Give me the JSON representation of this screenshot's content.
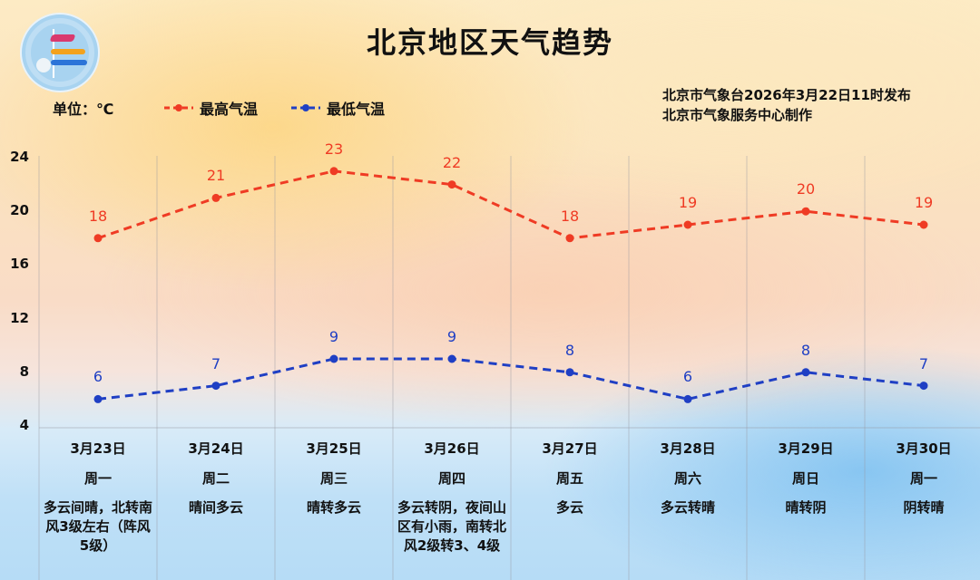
{
  "header": {
    "title": "北京地区天气趋势",
    "unit_label": "单位：℃",
    "legend": [
      {
        "name": "最高气温",
        "color": "#ef3b24"
      },
      {
        "name": "最低气温",
        "color": "#1f3fc4"
      }
    ],
    "issuer_line1": "北京市气象台2026年3月22日11时发布",
    "issuer_line2": "北京市气象服务中心制作",
    "logo_text": "BEIJING METEOROLOGICAL SERVICE 气象北京"
  },
  "chart_data": {
    "type": "line",
    "title": "北京地区天气趋势",
    "xlabel": "",
    "ylabel": "℃",
    "ylim": [
      4,
      24
    ],
    "yticks": [
      4,
      8,
      12,
      16,
      20,
      24
    ],
    "grid": "vertical column dividers",
    "legend_position": "top",
    "categories": [
      "3月23日",
      "3月24日",
      "3月25日",
      "3月26日",
      "3月27日",
      "3月28日",
      "3月29日",
      "3月30日"
    ],
    "series": [
      {
        "name": "最高气温",
        "color": "#ef3b24",
        "style": "dashed",
        "values": [
          18,
          21,
          23,
          22,
          18,
          19,
          20,
          19
        ]
      },
      {
        "name": "最低气温",
        "color": "#1f3fc4",
        "style": "dashed",
        "values": [
          6,
          7,
          9,
          9,
          8,
          6,
          8,
          7
        ]
      }
    ]
  },
  "days": [
    {
      "date": "3月23日",
      "dow": "周一",
      "weather": "多云间晴，北转南风3级左右（阵风5级）"
    },
    {
      "date": "3月24日",
      "dow": "周二",
      "weather": "晴间多云"
    },
    {
      "date": "3月25日",
      "dow": "周三",
      "weather": "晴转多云"
    },
    {
      "date": "3月26日",
      "dow": "周四",
      "weather": "多云转阴，夜间山区有小雨，南转北风2级转3、4级"
    },
    {
      "date": "3月27日",
      "dow": "周五",
      "weather": "多云"
    },
    {
      "date": "3月28日",
      "dow": "周六",
      "weather": "多云转晴"
    },
    {
      "date": "3月29日",
      "dow": "周日",
      "weather": "晴转阴"
    },
    {
      "date": "3月30日",
      "dow": "周一",
      "weather": "阴转晴"
    }
  ]
}
